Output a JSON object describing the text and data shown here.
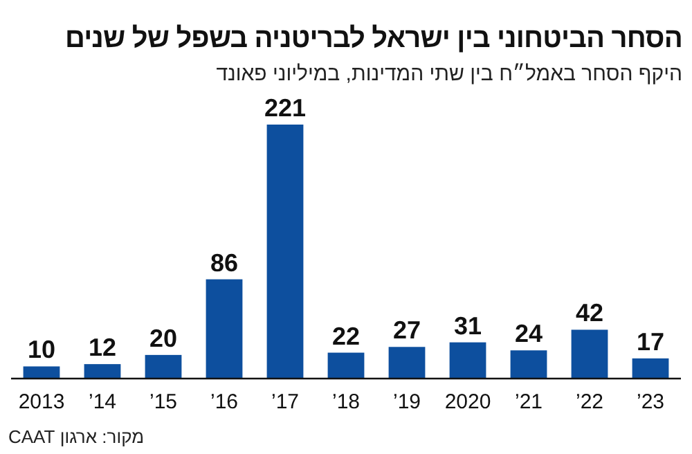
{
  "chart_data": {
    "type": "bar",
    "title": "הסחר הביטחוני בין ישראל לבריטניה בשפל של שנים",
    "subtitle": "היקף הסחר באמל״ח בין שתי המדינות, במיליוני פאונד",
    "categories": [
      "2013",
      "’14",
      "’15",
      "’16",
      "’17",
      "’18",
      "’19",
      "2020",
      "’21",
      "’22",
      "’23"
    ],
    "values": [
      10,
      12,
      20,
      86,
      221,
      22,
      27,
      31,
      24,
      42,
      17
    ],
    "color": "#0d4f9e",
    "data_labels": true,
    "annotations": [
      "מקור: ארגון CAAT"
    ]
  }
}
